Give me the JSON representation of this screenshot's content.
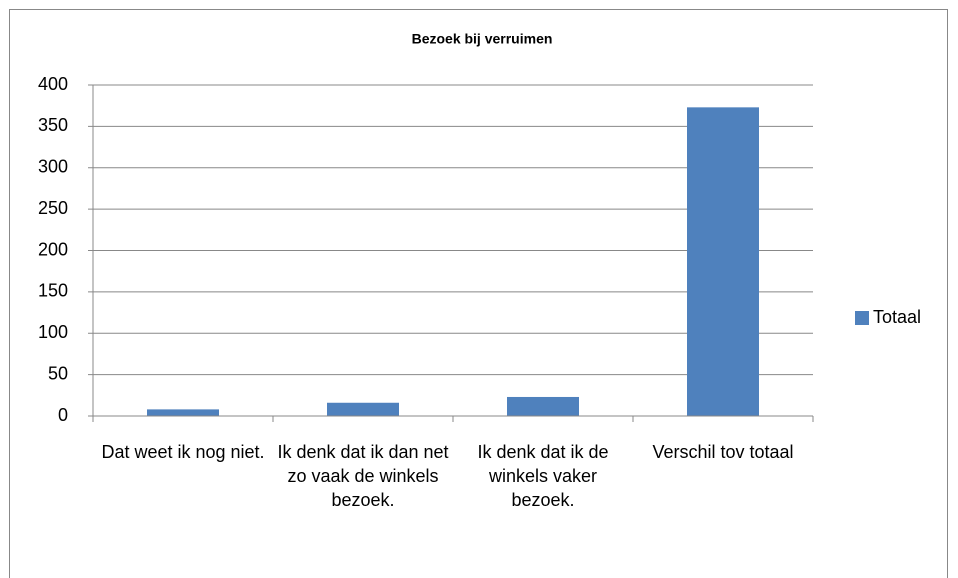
{
  "chart_data": {
    "type": "bar",
    "title": "Bezoek bij verruimen",
    "categories": [
      "Dat weet ik nog niet.",
      "Ik denk dat ik dan net zo vaak de winkels bezoek.",
      "Ik denk dat ik de winkels vaker bezoek.",
      "Verschil tov totaal"
    ],
    "series": [
      {
        "name": "Totaal",
        "color": "#4f81bd",
        "values": [
          8,
          16,
          23,
          373
        ]
      }
    ],
    "ylim": [
      0,
      400
    ],
    "yticks": [
      0,
      50,
      100,
      150,
      200,
      250,
      300,
      350,
      400
    ],
    "grid": true,
    "legend": "right"
  }
}
